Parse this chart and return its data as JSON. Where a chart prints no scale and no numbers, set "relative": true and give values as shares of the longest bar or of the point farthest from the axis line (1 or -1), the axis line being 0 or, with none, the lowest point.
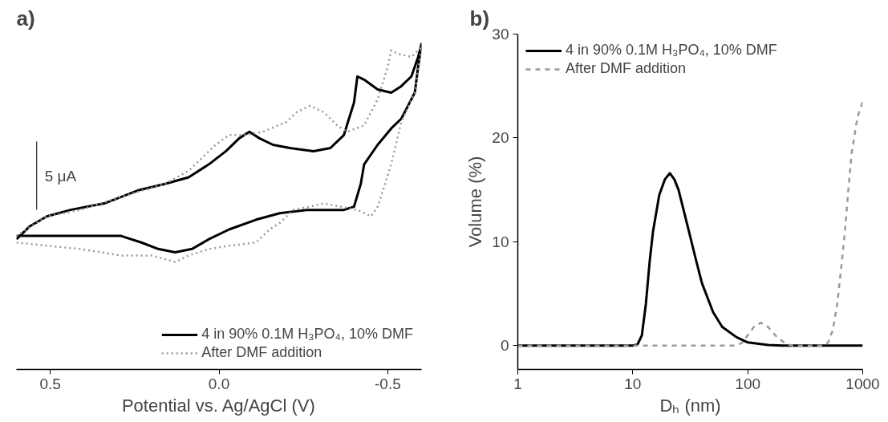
{
  "chart_data": [
    {
      "type": "line",
      "title": "a)",
      "xlabel": "Potential vs. Ag/AgCl (V)",
      "relative": true,
      "xlim": [
        0.6,
        -0.6
      ],
      "xticks": [
        0.5,
        {
          "value": 0,
          "label": "0.0"
        },
        {
          "value": -0.5,
          "label": "-0.5"
        }
      ],
      "grid": false,
      "legend": "bottom right",
      "annotations": [
        "5 μA"
      ],
      "series": [
        {
          "color": "#000000",
          "line_style": "solid",
          "x": [
            0.54,
            0.54
          ],
          "values": [
            0.49,
            0.7
          ]
        },
        {
          "name": "4 in 90% 0.1M H₃PO₄, 10% DMF",
          "color": "#000000",
          "line_style": "solid",
          "x": [
            0.6,
            0.56,
            0.51,
            0.44,
            0.34,
            0.24,
            0.16,
            0.09,
            0.03,
            -0.02,
            -0.06,
            -0.09,
            -0.12,
            -0.16,
            -0.21,
            -0.28,
            -0.33,
            -0.37,
            -0.4,
            -0.41,
            -0.43,
            -0.47,
            -0.51,
            -0.54,
            -0.57,
            -0.59,
            -0.6,
            -0.59,
            -0.58,
            -0.54,
            -0.51,
            -0.47,
            -0.43,
            -0.42,
            -0.4,
            -0.37,
            -0.32,
            -0.26,
            -0.18,
            -0.11,
            -0.03,
            0.03,
            0.08,
            0.13,
            0.18,
            0.23,
            0.29,
            0.39,
            0.51,
            0.6
          ],
          "values": [
            0.4,
            0.44,
            0.47,
            0.49,
            0.51,
            0.55,
            0.57,
            0.59,
            0.63,
            0.67,
            0.71,
            0.73,
            0.71,
            0.69,
            0.68,
            0.67,
            0.68,
            0.72,
            0.82,
            0.9,
            0.89,
            0.86,
            0.85,
            0.87,
            0.9,
            0.96,
            1.0,
            0.93,
            0.85,
            0.77,
            0.74,
            0.69,
            0.63,
            0.57,
            0.5,
            0.49,
            0.49,
            0.49,
            0.48,
            0.46,
            0.43,
            0.4,
            0.37,
            0.36,
            0.37,
            0.39,
            0.41,
            0.41,
            0.41,
            0.41
          ]
        },
        {
          "name": "After DMF addition",
          "color": "#999999",
          "line_style": "dotted",
          "x": [
            0.6,
            0.51,
            0.41,
            0.29,
            0.16,
            0.09,
            0.05,
            0.01,
            -0.03,
            -0.08,
            -0.13,
            -0.2,
            -0.23,
            -0.27,
            -0.31,
            -0.35,
            -0.38,
            -0.43,
            -0.47,
            -0.5,
            -0.51,
            -0.53,
            -0.57,
            -0.6,
            -0.58,
            -0.54,
            -0.51,
            -0.48,
            -0.47,
            -0.45,
            -0.41,
            -0.36,
            -0.31,
            -0.27,
            -0.22,
            -0.18,
            -0.15,
            -0.11,
            -0.03,
            0.03,
            0.09,
            0.13,
            0.2,
            0.29,
            0.41,
            0.51,
            0.6
          ],
          "values": [
            0.41,
            0.47,
            0.49,
            0.53,
            0.57,
            0.61,
            0.65,
            0.69,
            0.72,
            0.72,
            0.73,
            0.76,
            0.79,
            0.81,
            0.79,
            0.75,
            0.73,
            0.75,
            0.83,
            0.93,
            0.98,
            0.97,
            0.96,
            0.99,
            0.85,
            0.76,
            0.63,
            0.53,
            0.5,
            0.47,
            0.49,
            0.5,
            0.51,
            0.5,
            0.49,
            0.45,
            0.43,
            0.39,
            0.38,
            0.37,
            0.35,
            0.33,
            0.35,
            0.35,
            0.37,
            0.38,
            0.39
          ]
        }
      ]
    },
    {
      "type": "line",
      "title": "b)",
      "xlabel": "Dₕ (nm)",
      "ylabel": "Volume (%)",
      "log": "x",
      "xlim": [
        1,
        1000
      ],
      "xticks": [
        1,
        10,
        100,
        1000
      ],
      "ylim": [
        -2.3,
        30
      ],
      "yticks": [
        0,
        10,
        20,
        30
      ],
      "grid": false,
      "legend": "top left",
      "series": [
        {
          "name": "4 in 90% 0.1M H₃PO₄, 10% DMF",
          "color": "#000000",
          "line_style": "solid",
          "x": [
            1,
            10,
            11,
            12,
            13,
            14,
            15,
            17,
            19,
            21,
            23,
            25,
            30,
            35,
            40,
            50,
            60,
            80,
            100,
            150,
            200,
            1000
          ],
          "values": [
            0,
            0,
            0.1,
            1,
            4,
            8,
            11,
            14.5,
            16,
            16.6,
            16,
            15,
            11.5,
            8.5,
            6,
            3.2,
            1.8,
            0.8,
            0.3,
            0.05,
            0,
            0
          ]
        },
        {
          "name": "After DMF addition",
          "color": "#999999",
          "line_style": "dashed",
          "x": [
            1,
            80,
            90,
            100,
            115,
            130,
            150,
            180,
            220,
            250,
            450,
            500,
            550,
            600,
            650,
            700,
            750,
            800,
            900,
            1000
          ],
          "values": [
            0,
            0,
            0.3,
            1,
            1.9,
            2.2,
            1.8,
            0.8,
            0.1,
            0,
            0,
            0.3,
            1.5,
            4,
            7.5,
            11,
            15,
            18.5,
            22,
            23.5
          ]
        }
      ]
    }
  ]
}
